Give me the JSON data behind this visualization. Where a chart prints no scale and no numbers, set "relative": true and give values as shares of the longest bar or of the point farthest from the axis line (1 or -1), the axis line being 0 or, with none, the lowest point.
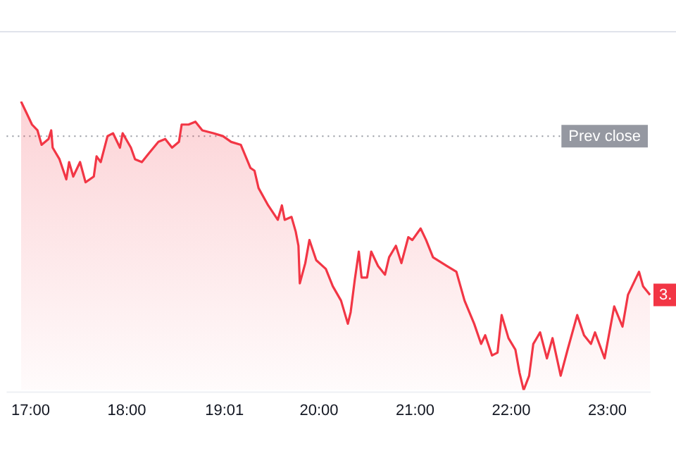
{
  "chart_data": {
    "type": "area",
    "relative": true,
    "x": [
      16.9,
      16.943,
      17.014,
      17.071,
      17.114,
      17.186,
      17.214,
      17.229,
      17.3,
      17.371,
      17.4,
      17.443,
      17.514,
      17.571,
      17.657,
      17.686,
      17.729,
      17.8,
      17.857,
      17.929,
      17.957,
      18.043,
      18.086,
      18.157,
      18.229,
      18.329,
      18.4,
      18.471,
      18.543,
      18.571,
      18.643,
      18.714,
      18.786,
      18.9,
      19.0,
      19.086,
      19.186,
      19.286,
      19.329,
      19.371,
      19.471,
      19.571,
      19.614,
      19.643,
      19.714,
      19.757,
      19.786,
      19.8,
      19.857,
      19.9,
      19.971,
      20.071,
      20.143,
      20.229,
      20.3,
      20.329,
      20.371,
      20.414,
      20.443,
      20.5,
      20.543,
      20.614,
      20.686,
      20.729,
      20.8,
      20.857,
      20.929,
      20.971,
      21.057,
      21.114,
      21.186,
      21.329,
      21.429,
      21.514,
      21.614,
      21.686,
      21.729,
      21.8,
      21.857,
      21.9,
      21.971,
      22.043,
      22.086,
      22.129,
      22.186,
      22.229,
      22.3,
      22.371,
      22.429,
      22.514,
      22.586,
      22.686,
      22.757,
      22.829,
      22.871,
      22.971,
      23.071,
      23.157,
      23.214,
      23.329,
      23.371,
      23.443
    ],
    "xlim": [
      16.75,
      23.45
    ],
    "series": [
      {
        "color": "#f23645",
        "values": [
          1.0,
          0.97,
          0.92,
          0.9,
          0.85,
          0.87,
          0.9,
          0.84,
          0.8,
          0.73,
          0.79,
          0.74,
          0.79,
          0.72,
          0.74,
          0.81,
          0.79,
          0.88,
          0.89,
          0.84,
          0.89,
          0.84,
          0.8,
          0.79,
          0.82,
          0.86,
          0.87,
          0.84,
          0.86,
          0.92,
          0.92,
          0.93,
          0.9,
          0.89,
          0.88,
          0.86,
          0.85,
          0.77,
          0.76,
          0.7,
          0.64,
          0.59,
          0.64,
          0.59,
          0.6,
          0.55,
          0.5,
          0.37,
          0.44,
          0.52,
          0.45,
          0.42,
          0.36,
          0.31,
          0.23,
          0.27,
          0.38,
          0.48,
          0.39,
          0.39,
          0.48,
          0.43,
          0.4,
          0.46,
          0.5,
          0.44,
          0.53,
          0.52,
          0.56,
          0.52,
          0.46,
          0.43,
          0.41,
          0.31,
          0.23,
          0.16,
          0.19,
          0.12,
          0.13,
          0.26,
          0.18,
          0.14,
          0.06,
          0,
          0.05,
          0.16,
          0.2,
          0.11,
          0.18,
          0.05,
          0.14,
          0.26,
          0.19,
          0.16,
          0.2,
          0.11,
          0.29,
          0.22,
          0.33,
          0.41,
          0.36,
          0.33
        ]
      }
    ],
    "xticks": [
      {
        "value": 17,
        "label": "17:00"
      },
      {
        "value": 18,
        "label": "18:00"
      },
      {
        "value": 19.0167,
        "label": "19:01"
      },
      {
        "value": 20,
        "label": "20:00"
      },
      {
        "value": 21,
        "label": "21:00"
      },
      {
        "value": 22,
        "label": "22:00"
      },
      {
        "value": 23,
        "label": "23:00"
      }
    ],
    "ref_lines": [
      {
        "axis": "y",
        "value": 0.88,
        "label": "Prev close",
        "line_style": "dotted",
        "color": "#9598a1"
      }
    ],
    "annotations": [
      {
        "text": "3.",
        "y": 0.33
      }
    ],
    "grid": false,
    "legend": false,
    "marker": "none",
    "line_style": "solid"
  }
}
